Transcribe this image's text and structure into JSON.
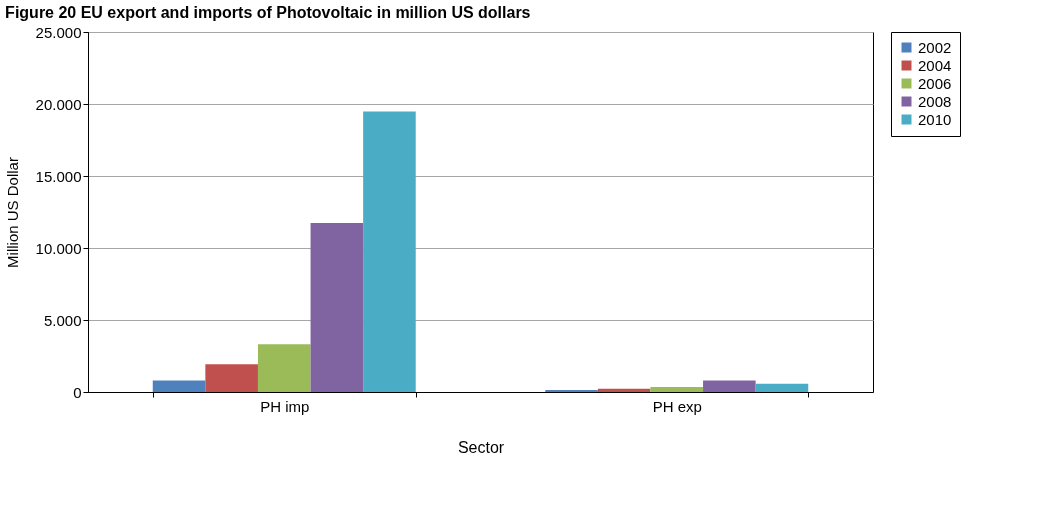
{
  "chart_data": {
    "type": "bar",
    "title": "Figure 20        EU export and imports of Photovoltaic in million US dollars",
    "xlabel": "Sector",
    "ylabel": "Million US Dollar",
    "categories": [
      "PH imp",
      "PH exp"
    ],
    "series": [
      {
        "name": "2002",
        "color": "#4f81bd",
        "values": [
          790,
          140
        ]
      },
      {
        "name": "2004",
        "color": "#c0504d",
        "values": [
          1920,
          230
        ]
      },
      {
        "name": "2006",
        "color": "#9bbb59",
        "values": [
          3310,
          350
        ]
      },
      {
        "name": "2008",
        "color": "#8064a2",
        "values": [
          11740,
          790
        ]
      },
      {
        "name": "2010",
        "color": "#4bacc6",
        "values": [
          19480,
          580
        ]
      }
    ],
    "ylim": [
      0,
      25000
    ],
    "yticks": [
      {
        "value": 0,
        "label": "0"
      },
      {
        "value": 5000,
        "label": "5.000"
      },
      {
        "value": 10000,
        "label": "10.000"
      },
      {
        "value": 15000,
        "label": "15.000"
      },
      {
        "value": 20000,
        "label": "20.000"
      },
      {
        "value": 25000,
        "label": "25.000"
      }
    ],
    "grid": "y",
    "legend": "right"
  }
}
